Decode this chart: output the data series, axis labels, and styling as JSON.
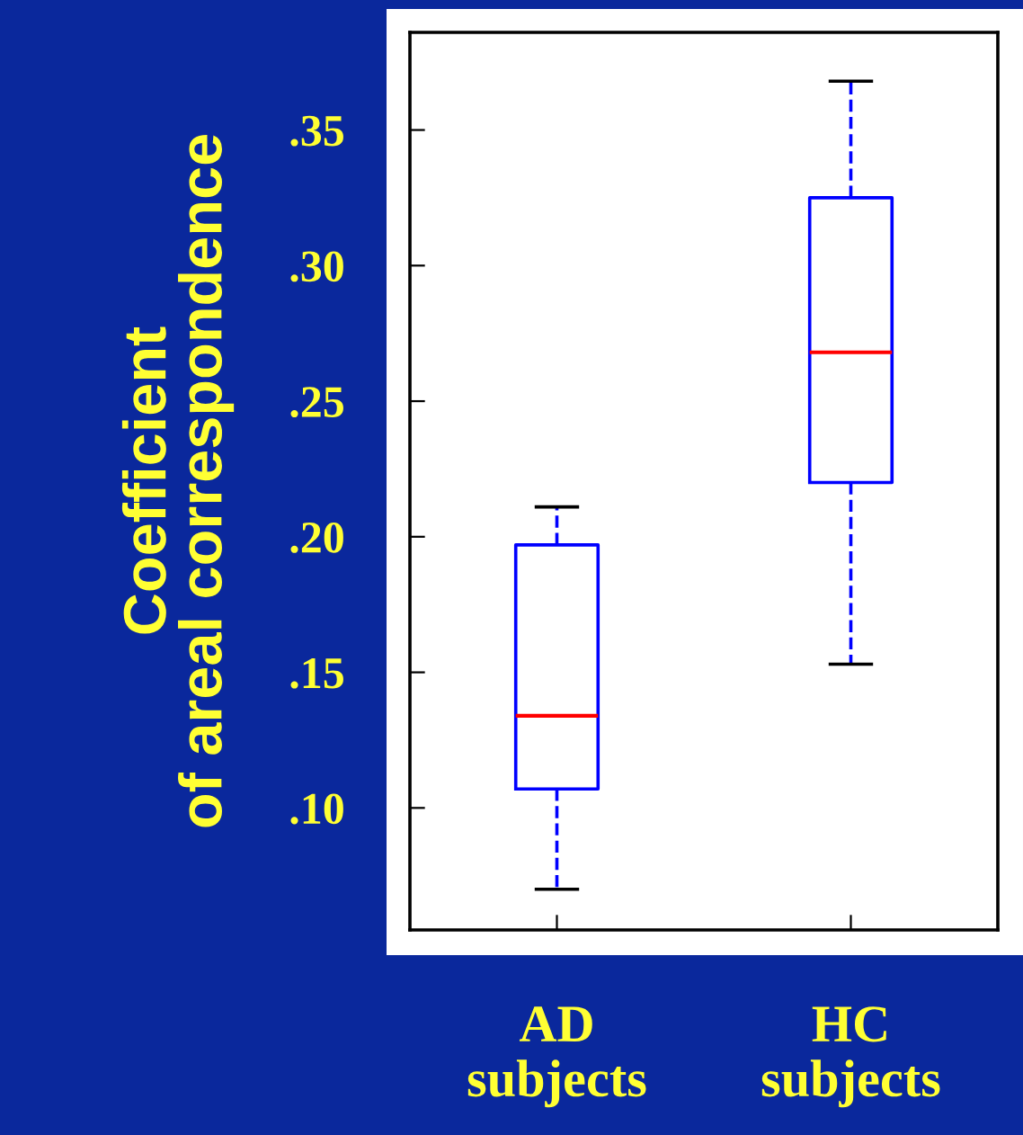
{
  "chart_data": {
    "type": "box",
    "ylabel": "Coefficient\nof areal correspondence",
    "categories": [
      "AD\nsubjects",
      "HC\nsubjects"
    ],
    "boxes": [
      {
        "low": 0.07,
        "q1": 0.107,
        "median": 0.134,
        "q3": 0.197,
        "high": 0.211
      },
      {
        "low": 0.153,
        "q1": 0.22,
        "median": 0.268,
        "q3": 0.325,
        "high": 0.368
      }
    ],
    "color": "#0000ff",
    "line_style": "dashed",
    "ylim": [
      0.055,
      0.386
    ],
    "yticks": [
      {
        "value": 0.1,
        "label": ".10"
      },
      {
        "value": 0.15,
        "label": ".15"
      },
      {
        "value": 0.2,
        "label": ".20"
      },
      {
        "value": 0.25,
        "label": ".25"
      },
      {
        "value": 0.3,
        "label": ".30"
      },
      {
        "value": 0.35,
        "label": ".35"
      }
    ],
    "grid": false,
    "legend": false
  }
}
